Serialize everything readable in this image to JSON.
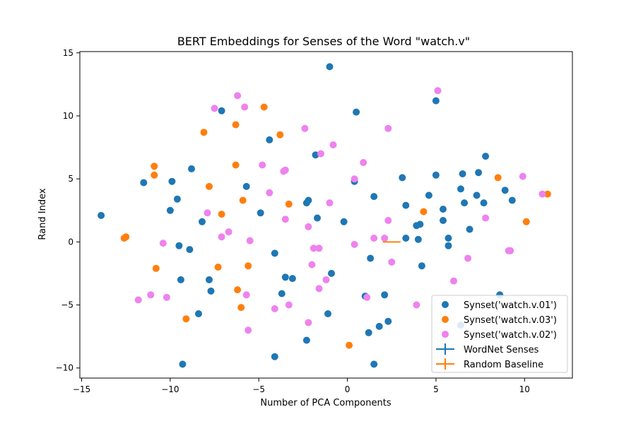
{
  "chart_data": {
    "type": "scatter",
    "title": "BERT Embeddings for Senses of the Word \"watch.v\"",
    "xlabel": "Number of PCA Components",
    "ylabel": "Rand Index",
    "xlim": [
      -15.1,
      12.7
    ],
    "ylim": [
      -10.8,
      15.1
    ],
    "xticks": [
      -15,
      -10,
      -5,
      0,
      5,
      10
    ],
    "yticks": [
      -10,
      -5,
      0,
      5,
      10,
      15
    ],
    "grid": false,
    "legend_position": "lower-right",
    "series": [
      {
        "name": "Synset('watch.v.01')",
        "color": "#1f77b4",
        "points": [
          [
            -1.0,
            13.9
          ],
          [
            0.5,
            10.3
          ],
          [
            5.0,
            11.2
          ],
          [
            -7.1,
            10.4
          ],
          [
            -4.4,
            8.1
          ],
          [
            -1.8,
            6.9
          ],
          [
            7.8,
            6.8
          ],
          [
            -8.8,
            5.8
          ],
          [
            -11.5,
            4.7
          ],
          [
            -9.9,
            4.8
          ],
          [
            -5.7,
            4.4
          ],
          [
            0.4,
            4.8
          ],
          [
            3.1,
            5.1
          ],
          [
            5.0,
            5.3
          ],
          [
            6.5,
            5.4
          ],
          [
            7.4,
            5.5
          ],
          [
            -9.6,
            3.4
          ],
          [
            -10.0,
            2.5
          ],
          [
            1.5,
            3.6
          ],
          [
            4.6,
            3.7
          ],
          [
            6.4,
            4.2
          ],
          [
            7.3,
            3.7
          ],
          [
            8.9,
            4.1
          ],
          [
            6.6,
            3.1
          ],
          [
            7.7,
            3.1
          ],
          [
            9.3,
            3.3
          ],
          [
            -2.3,
            3.1
          ],
          [
            -2.2,
            3.3
          ],
          [
            -4.9,
            2.3
          ],
          [
            -8.2,
            1.6
          ],
          [
            -1.7,
            1.9
          ],
          [
            -0.2,
            1.6
          ],
          [
            3.3,
            2.9
          ],
          [
            5.4,
            2.6
          ],
          [
            5.4,
            1.7
          ],
          [
            3.9,
            1.3
          ],
          [
            4.1,
            1.4
          ],
          [
            -13.9,
            2.1
          ],
          [
            6.9,
            1.0
          ],
          [
            5.7,
            0.3
          ],
          [
            4.0,
            0.2
          ],
          [
            3.3,
            0.3
          ],
          [
            -9.5,
            -0.3
          ],
          [
            -8.9,
            -0.6
          ],
          [
            -4.1,
            -0.9
          ],
          [
            5.7,
            -0.3
          ],
          [
            1.3,
            -1.3
          ],
          [
            4.2,
            -1.9
          ],
          [
            -0.9,
            -2.5
          ],
          [
            -3.5,
            -2.8
          ],
          [
            -3.1,
            -2.9
          ],
          [
            -9.4,
            -3.0
          ],
          [
            -7.8,
            -3.0
          ],
          [
            -7.7,
            -3.9
          ],
          [
            -3.7,
            -4.1
          ],
          [
            1.0,
            -4.3
          ],
          [
            2.1,
            -4.2
          ],
          [
            8.6,
            -4.2
          ],
          [
            -8.4,
            -5.7
          ],
          [
            -1.1,
            -5.7
          ],
          [
            6.4,
            -6.6
          ],
          [
            2.3,
            -6.3
          ],
          [
            1.8,
            -6.7
          ],
          [
            1.2,
            -7.2
          ],
          [
            -2.3,
            -7.8
          ],
          [
            -4.1,
            -9.1
          ],
          [
            -9.3,
            -9.7
          ],
          [
            1.5,
            -9.7
          ]
        ]
      },
      {
        "name": "Synset('watch.v.03')",
        "color": "#ff7f0e",
        "points": [
          [
            -4.7,
            10.7
          ],
          [
            -6.3,
            9.3
          ],
          [
            -8.1,
            8.7
          ],
          [
            -3.8,
            8.5
          ],
          [
            -10.9,
            6.0
          ],
          [
            -10.9,
            5.3
          ],
          [
            -6.3,
            6.1
          ],
          [
            -7.8,
            4.4
          ],
          [
            8.5,
            5.1
          ],
          [
            -5.9,
            3.3
          ],
          [
            -3.3,
            3.0
          ],
          [
            -7.1,
            2.2
          ],
          [
            4.3,
            2.4
          ],
          [
            11.3,
            3.8
          ],
          [
            10.1,
            1.6
          ],
          [
            -12.6,
            0.3
          ],
          [
            -12.5,
            0.4
          ],
          [
            -10.8,
            -2.1
          ],
          [
            -7.3,
            -2.0
          ],
          [
            -5.6,
            -1.9
          ],
          [
            -6.2,
            -3.8
          ],
          [
            -6.0,
            -5.2
          ],
          [
            -9.1,
            -6.1
          ],
          [
            0.1,
            -8.2
          ]
        ]
      },
      {
        "name": "Synset('watch.v.02')",
        "color": "#ee82ee",
        "points": [
          [
            5.1,
            12.0
          ],
          [
            -6.2,
            11.6
          ],
          [
            -7.5,
            10.6
          ],
          [
            -5.8,
            10.7
          ],
          [
            -2.4,
            9.0
          ],
          [
            2.3,
            9.0
          ],
          [
            -0.8,
            7.7
          ],
          [
            -1.5,
            7.0
          ],
          [
            0.9,
            6.3
          ],
          [
            -4.8,
            6.1
          ],
          [
            -3.6,
            5.6
          ],
          [
            -3.5,
            5.7
          ],
          [
            0.4,
            5.0
          ],
          [
            9.9,
            5.2
          ],
          [
            11.0,
            3.8
          ],
          [
            -4.4,
            3.9
          ],
          [
            -1.0,
            3.1
          ],
          [
            -7.9,
            2.3
          ],
          [
            7.8,
            1.9
          ],
          [
            -3.5,
            1.8
          ],
          [
            2.3,
            1.7
          ],
          [
            -2.2,
            1.2
          ],
          [
            -6.7,
            0.8
          ],
          [
            -7.1,
            0.4
          ],
          [
            2.1,
            0.3
          ],
          [
            1.5,
            0.3
          ],
          [
            -5.5,
            0.1
          ],
          [
            -10.4,
            -0.1
          ],
          [
            0.4,
            -0.2
          ],
          [
            -1.9,
            -0.5
          ],
          [
            -1.6,
            -0.5
          ],
          [
            9.1,
            -0.7
          ],
          [
            9.2,
            -0.7
          ],
          [
            6.8,
            -1.3
          ],
          [
            2.5,
            -1.6
          ],
          [
            -2.0,
            -1.8
          ],
          [
            -1.2,
            -3.0
          ],
          [
            6.0,
            -3.1
          ],
          [
            -1.6,
            -3.7
          ],
          [
            -11.1,
            -4.2
          ],
          [
            -5.7,
            -4.2
          ],
          [
            -10.2,
            -4.4
          ],
          [
            1.1,
            -4.4
          ],
          [
            -11.8,
            -4.6
          ],
          [
            -3.3,
            -5.0
          ],
          [
            -4.1,
            -5.3
          ],
          [
            3.9,
            -5.0
          ],
          [
            -2.2,
            -6.4
          ],
          [
            -5.6,
            -7.0
          ]
        ]
      }
    ],
    "lines": [
      {
        "name": "WordNet Senses",
        "color": "#1f77b4",
        "style": "errorbar"
      },
      {
        "name": "Random Baseline",
        "color": "#ff7f0e",
        "style": "errorbar",
        "x": [
          2.0,
          3.0
        ],
        "y": [
          0.0,
          0.0
        ]
      }
    ]
  }
}
